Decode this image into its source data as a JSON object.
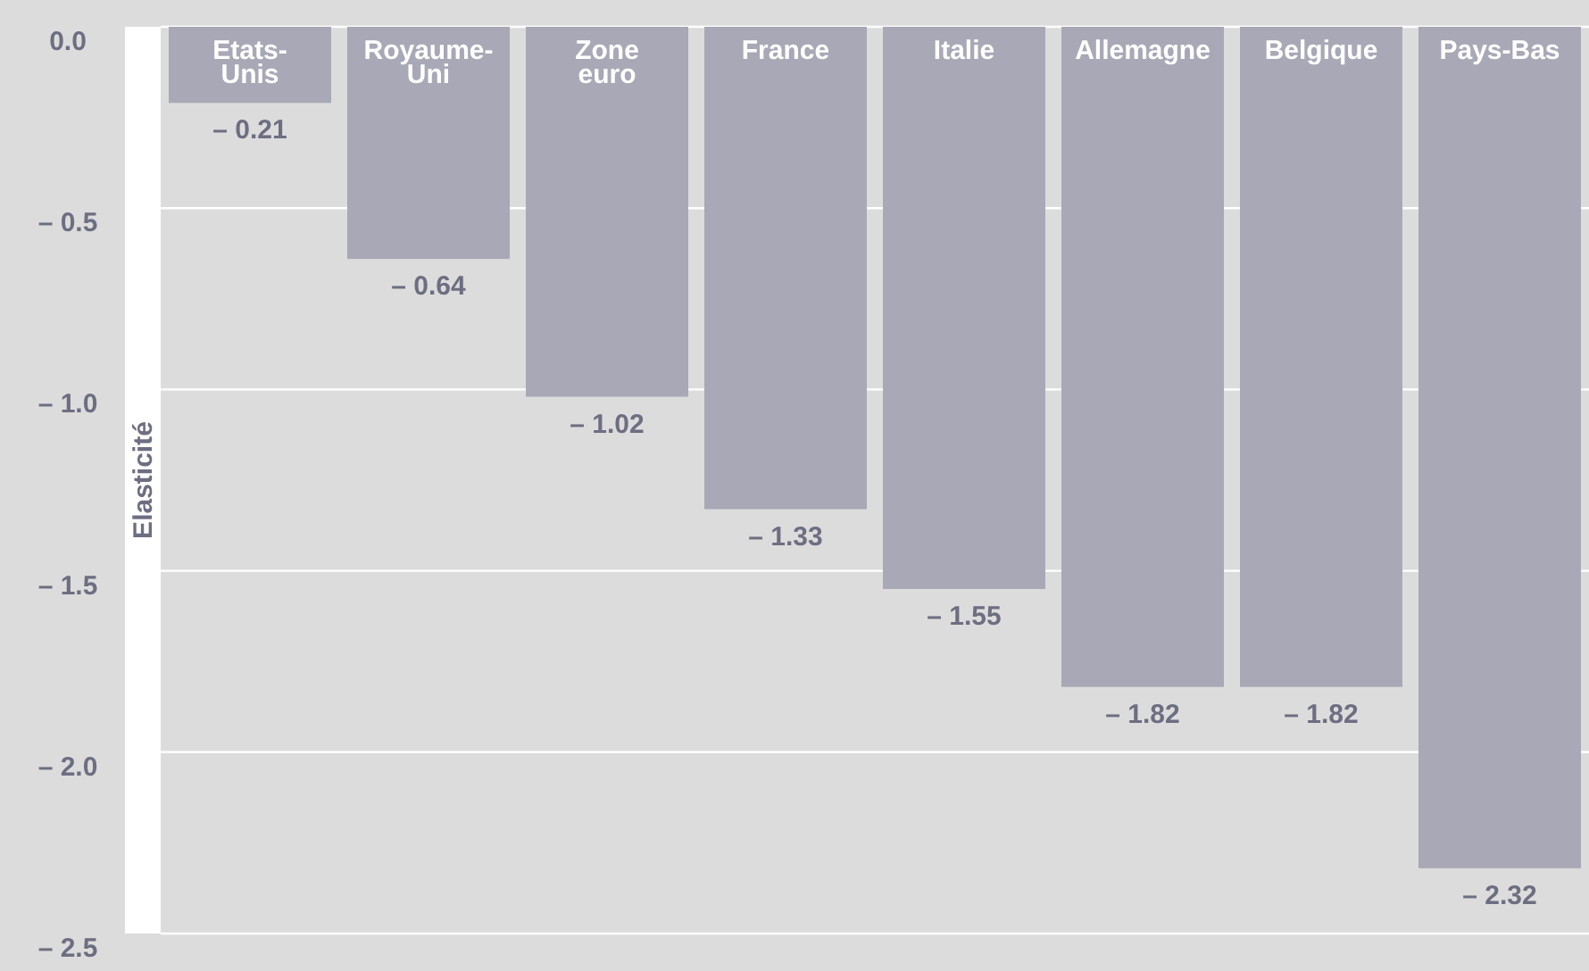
{
  "chart_data": {
    "type": "bar",
    "ylabel": "Elasticité",
    "categories": [
      "Etats-\nUnis",
      "Royaume-\nUni",
      "Zone\neuro",
      "France",
      "Italie",
      "Allemagne",
      "Belgique",
      "Pays-Bas"
    ],
    "values": [
      -0.21,
      -0.64,
      -1.02,
      -1.33,
      -1.55,
      -1.82,
      -1.82,
      -2.32
    ],
    "value_labels": [
      "– 0.21",
      "– 0.64",
      "– 1.02",
      "– 1.33",
      "– 1.55",
      "– 1.82",
      "– 1.82",
      "– 2.32"
    ],
    "color": "#a8a8b6",
    "ylim": [
      -2.5,
      0
    ],
    "yticks": [
      {
        "value": 0,
        "label": "0.0"
      },
      {
        "value": -0.5,
        "label": "– 0.5"
      },
      {
        "value": -1,
        "label": "– 1.0"
      },
      {
        "value": -1.5,
        "label": "– 1.5"
      },
      {
        "value": -2,
        "label": "– 2.0"
      },
      {
        "value": -2.5,
        "label": "– 2.5"
      }
    ],
    "grid": "y"
  }
}
